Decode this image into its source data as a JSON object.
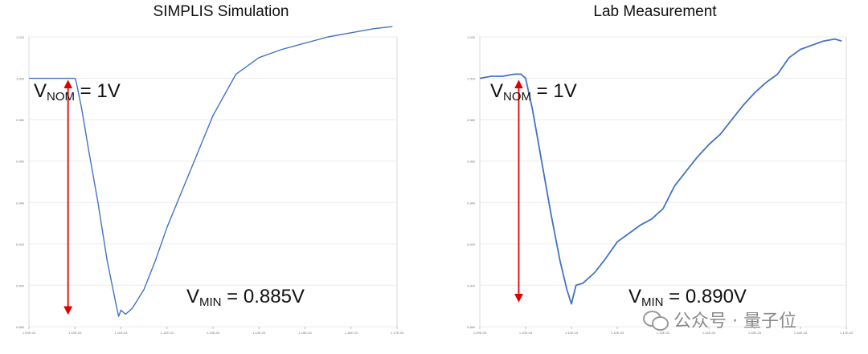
{
  "chart_data": [
    {
      "type": "line",
      "title": "SIMPLIS Simulation",
      "xlabel": "",
      "ylabel": "",
      "xlim": [
        1.09,
        1.17
      ],
      "ylim": [
        0.88,
        1.02
      ],
      "x_ticks": [
        "1.09E-03",
        "1.10E-03",
        "1.11E-03",
        "1.12E-03",
        "1.13E-03",
        "1.14E-03",
        "1.15E-03",
        "1.16E-03",
        "1.17E-03"
      ],
      "y_ticks": [
        "0.880",
        "0.900",
        "0.920",
        "0.940",
        "0.960",
        "0.980",
        "1.000",
        "1.020"
      ],
      "grid": "horizontal",
      "series": [
        {
          "color": "#4472c4",
          "x": [
            1.09,
            1.0925,
            1.095,
            1.0975,
            1.0995,
            1.1,
            1.1003,
            1.1015,
            1.103,
            1.105,
            1.107,
            1.109,
            1.1095,
            1.11,
            1.111,
            1.1125,
            1.115,
            1.1175,
            1.12,
            1.125,
            1.13,
            1.135,
            1.14,
            1.1425,
            1.145,
            1.15,
            1.155,
            1.16,
            1.165,
            1.169
          ],
          "y": [
            1.0,
            1.0,
            1.0,
            1.0,
            1.0,
            1.0,
            0.998,
            0.985,
            0.965,
            0.94,
            0.912,
            0.89,
            0.885,
            0.888,
            0.886,
            0.889,
            0.898,
            0.912,
            0.928,
            0.955,
            0.982,
            1.002,
            1.01,
            1.012,
            1.014,
            1.017,
            1.02,
            1.022,
            1.024,
            1.025
          ]
        }
      ],
      "annotations": {
        "vnom": {
          "v": "V",
          "sub": "NOM",
          "rest": " = 1V"
        },
        "vmin": {
          "v": "V",
          "sub": "MIN",
          "rest": " = 0.885V"
        }
      }
    },
    {
      "type": "line",
      "title": "Lab Measurement",
      "xlabel": "",
      "ylabel": "",
      "xlim": [
        1.09,
        1.17
      ],
      "ylim": [
        0.88,
        1.02
      ],
      "x_ticks": [
        "1.09E-03",
        "1.10E-03",
        "1.11E-03",
        "1.12E-03",
        "1.13E-03",
        "1.14E-03",
        "1.15E-03",
        "1.16E-03",
        "1.17E-03"
      ],
      "y_ticks": [
        "0.880",
        "0.900",
        "0.920",
        "0.940",
        "0.960",
        "0.980",
        "1.000",
        "1.020"
      ],
      "grid": "horizontal",
      "series": [
        {
          "color": "#4472c4",
          "x": [
            1.09,
            1.0925,
            1.095,
            1.0975,
            1.099,
            1.1,
            1.1015,
            1.1035,
            1.1055,
            1.1075,
            1.109,
            1.11,
            1.111,
            1.1125,
            1.115,
            1.1175,
            1.12,
            1.1225,
            1.125,
            1.1275,
            1.13,
            1.1325,
            1.135,
            1.1375,
            1.14,
            1.1425,
            1.145,
            1.1475,
            1.15,
            1.1525,
            1.155,
            1.1575,
            1.16,
            1.1625,
            1.165,
            1.1675,
            1.169
          ],
          "y": [
            1.0,
            1.001,
            1.001,
            1.002,
            1.002,
            1.0,
            0.985,
            0.96,
            0.935,
            0.912,
            0.898,
            0.891,
            0.9,
            0.901,
            0.906,
            0.913,
            0.921,
            0.925,
            0.929,
            0.932,
            0.937,
            0.948,
            0.955,
            0.962,
            0.968,
            0.973,
            0.98,
            0.987,
            0.993,
            0.998,
            1.002,
            1.01,
            1.014,
            1.016,
            1.018,
            1.019,
            1.018
          ]
        }
      ],
      "annotations": {
        "vnom": {
          "v": "V",
          "sub": "NOM",
          "rest": " = 1V"
        },
        "vmin": {
          "v": "V",
          "sub": "MIN",
          "rest": " = 0.890V"
        }
      }
    }
  ],
  "watermark": "公众号 · 量子位"
}
